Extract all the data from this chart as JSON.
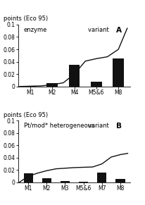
{
  "chart_A": {
    "bar_labels": [
      "M1",
      "M2",
      "M4",
      "M5&6",
      "M8"
    ],
    "bar_values": [
      0.001,
      0.005,
      0.035,
      0.008,
      0.045
    ],
    "cum_line_x": [
      -0.5,
      0.0,
      0.5,
      1.0,
      1.5,
      2.0,
      2.5,
      3.0,
      3.5,
      4.0,
      4.4
    ],
    "cum_line_y": [
      0.0,
      0.0005,
      0.001,
      0.003,
      0.006,
      0.02,
      0.041,
      0.045,
      0.048,
      0.06,
      0.094
    ],
    "ylim": [
      0,
      0.1
    ],
    "yticks": [
      0,
      0.02,
      0.04,
      0.06,
      0.08,
      0.1
    ],
    "ylabel": "points (Eco 95)",
    "inner_title1": "enzyme",
    "inner_title2": "variant ",
    "inner_title_letter": "A"
  },
  "chart_B": {
    "bar_labels": [
      "M1",
      "M2",
      "M3",
      "M5&6",
      "M7",
      "M8"
    ],
    "bar_values": [
      0.015,
      0.007,
      0.002,
      0.001,
      0.016,
      0.006
    ],
    "cum_line_x": [
      -0.5,
      0.0,
      0.5,
      1.0,
      1.5,
      2.0,
      2.5,
      3.0,
      3.5,
      4.0,
      4.5,
      5.0,
      5.4
    ],
    "cum_line_y": [
      0.0,
      0.01,
      0.015,
      0.019,
      0.022,
      0.023,
      0.024,
      0.0245,
      0.025,
      0.03,
      0.041,
      0.045,
      0.047
    ],
    "ylim": [
      0,
      0.1
    ],
    "yticks": [
      0,
      0.02,
      0.04,
      0.06,
      0.08,
      0.1
    ],
    "ylabel": "points (Eco 95)",
    "inner_title1": "Pt/mod* heterogeneous",
    "inner_title2": "variant ",
    "inner_title_letter": "B"
  },
  "bar_color": "#111111",
  "line_color": "#111111",
  "bg_color": "#ffffff",
  "inner_title_fontsize": 6.0,
  "ylabel_fontsize": 6.0,
  "tick_fontsize": 5.5,
  "letter_fontsize": 7.5
}
